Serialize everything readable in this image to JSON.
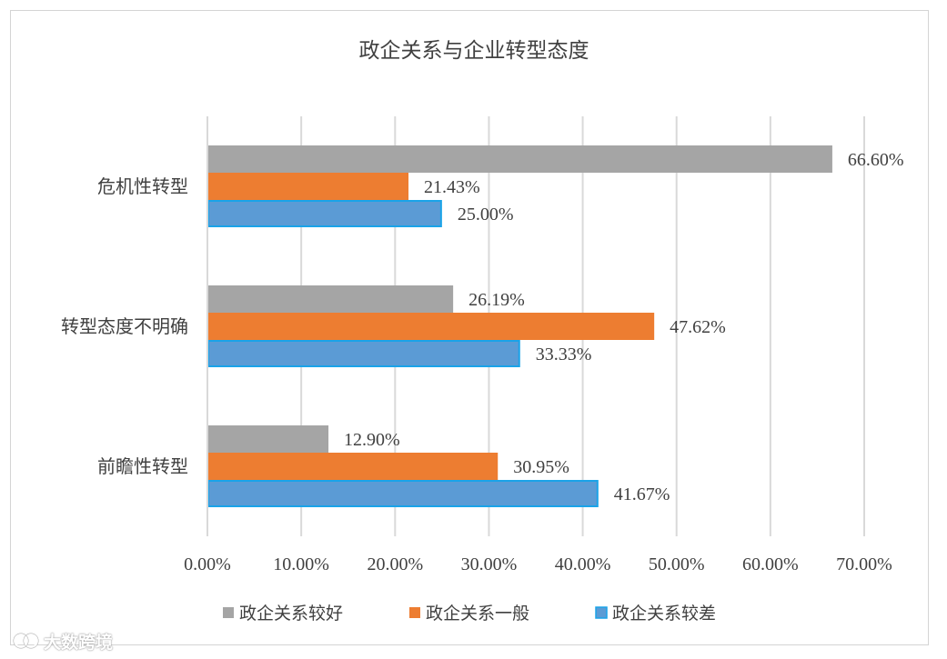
{
  "chart_data": {
    "type": "bar",
    "orientation": "horizontal",
    "title": "政企关系与企业转型态度",
    "categories": [
      "危机性转型",
      "转型态度不明确",
      "前瞻性转型"
    ],
    "series": [
      {
        "name": "政企关系较好",
        "values": [
          66.6,
          26.19,
          12.9
        ],
        "labels": [
          "66.60%",
          "26.19%",
          "12.90%"
        ],
        "color": "#a5a5a5"
      },
      {
        "name": "政企关系一般",
        "values": [
          21.43,
          47.62,
          30.95
        ],
        "labels": [
          "21.43%",
          "47.62%",
          "30.95%"
        ],
        "color": "#ed7d31"
      },
      {
        "name": "政企关系较差",
        "values": [
          25.0,
          33.33,
          41.67
        ],
        "labels": [
          "25.00%",
          "33.33%",
          "41.67%"
        ],
        "color": "#5b9bd5",
        "border_color": "#1aa3e8"
      }
    ],
    "xlim": [
      0,
      70
    ],
    "xticks": [
      0,
      10,
      20,
      30,
      40,
      50,
      60,
      70
    ],
    "xtick_labels": [
      "0.00%",
      "10.00%",
      "20.00%",
      "30.00%",
      "40.00%",
      "50.00%",
      "60.00%",
      "70.00%"
    ],
    "grid": true,
    "legend_position": "bottom",
    "colors": {
      "grid": "#d9d9d9",
      "text": "#404040",
      "border": "#d4d4d4"
    }
  },
  "watermark": {
    "text": "大数跨境",
    "icon": "watermark-logo-icon"
  }
}
